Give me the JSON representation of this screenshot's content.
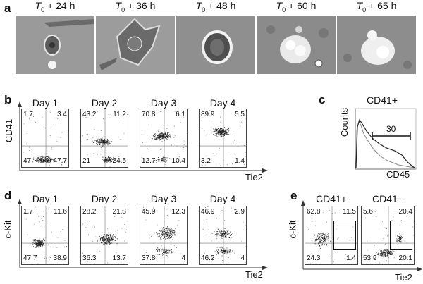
{
  "panel_a": {
    "label": "a",
    "images": [
      {
        "prefix": "T",
        "sub": "0",
        "suffix": " + 24 h"
      },
      {
        "prefix": "T",
        "sub": "0",
        "suffix": " + 36 h"
      },
      {
        "prefix": "T",
        "sub": "0",
        "suffix": " + 48 h"
      },
      {
        "prefix": "T",
        "sub": "0",
        "suffix": " + 60 h"
      },
      {
        "prefix": "T",
        "sub": "0",
        "suffix": " + 65 h"
      }
    ]
  },
  "panel_b": {
    "label": "b",
    "ylabel": "CD41",
    "xlabel": "Tie2",
    "plots": [
      {
        "day": "Day 1",
        "ul": "1.7",
        "ur": "3.4",
        "ll": "47.",
        "lr": "47.7"
      },
      {
        "day": "Day 2",
        "ul": "43.2",
        "ur": "11.2",
        "ll": "21",
        "lr": "24.5"
      },
      {
        "day": "Day 3",
        "ul": "70.8",
        "ur": "6.1",
        "ll": "12.7",
        "lr": "10.4"
      },
      {
        "day": "Day 4",
        "ul": "89.9",
        "ur": "5.5",
        "ll": "3.2",
        "lr": "1.4"
      }
    ]
  },
  "panel_c": {
    "label": "c",
    "title": "CD41+",
    "ylabel": "Counts",
    "xlabel": "CD45",
    "gate": "30"
  },
  "panel_d": {
    "label": "d",
    "ylabel": "c-Kit",
    "xlabel": "Tie2",
    "plots": [
      {
        "day": "Day 1",
        "ul": "1.7",
        "ur": "11.6",
        "ll": "47.7",
        "lr": "38.9"
      },
      {
        "day": "Day 2",
        "ul": "28.2",
        "ur": "21.8",
        "ll": "36.3",
        "lr": "13.7"
      },
      {
        "day": "Day 3",
        "ul": "45.9",
        "ur": "12.3",
        "ll": "37.8",
        "lr": "4"
      },
      {
        "day": "Day 4",
        "ul": "46.9",
        "ur": "2.9",
        "ll": "46.2",
        "lr": "4"
      }
    ]
  },
  "panel_e": {
    "label": "e",
    "ylabel": "c-Kit",
    "xlabel": "Tie2",
    "plots": [
      {
        "title": "CD41+",
        "ul": "62.8",
        "ur": "11.5",
        "ll": "24.3",
        "lr": "1.4"
      },
      {
        "title": "CD41−",
        "ul": "5.6",
        "ur": "20.4",
        "ll": "53.9",
        "lr": "20.1"
      }
    ]
  }
}
